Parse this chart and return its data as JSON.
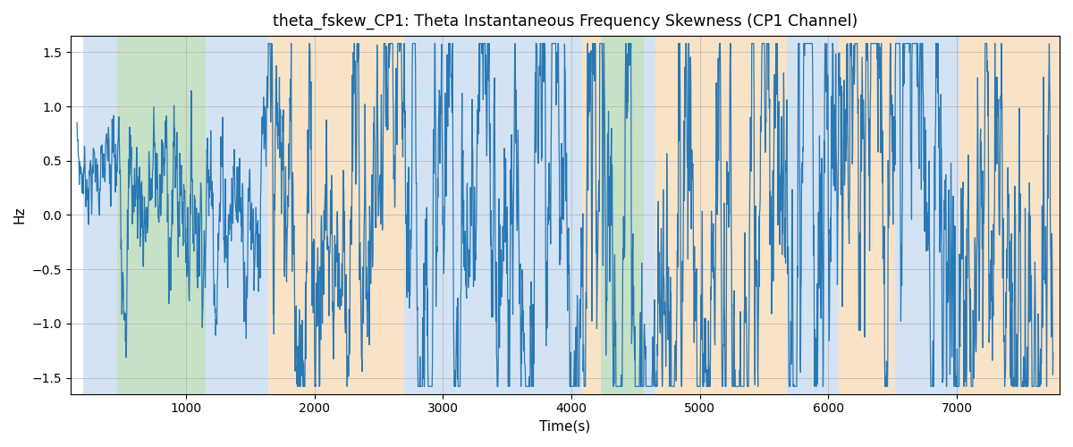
{
  "title": "theta_fskew_CP1: Theta Instantaneous Frequency Skewness (CP1 Channel)",
  "xlabel": "Time(s)",
  "ylabel": "Hz",
  "ylim": [
    -1.65,
    1.65
  ],
  "xlim": [
    100,
    7800
  ],
  "line_color": "#2878b5",
  "line_width": 0.9,
  "background_regions": [
    {
      "xmin": 200,
      "xmax": 460,
      "color": "#aac8e8",
      "alpha": 0.5
    },
    {
      "xmin": 460,
      "xmax": 1150,
      "color": "#90c490",
      "alpha": 0.5
    },
    {
      "xmin": 1150,
      "xmax": 1640,
      "color": "#aac8e8",
      "alpha": 0.5
    },
    {
      "xmin": 1640,
      "xmax": 2700,
      "color": "#f5c890",
      "alpha": 0.5
    },
    {
      "xmin": 2700,
      "xmax": 4080,
      "color": "#aac8e8",
      "alpha": 0.5
    },
    {
      "xmin": 4080,
      "xmax": 4230,
      "color": "#f5c890",
      "alpha": 0.5
    },
    {
      "xmin": 4230,
      "xmax": 4560,
      "color": "#90c490",
      "alpha": 0.5
    },
    {
      "xmin": 4560,
      "xmax": 4650,
      "color": "#aac8e8",
      "alpha": 0.5
    },
    {
      "xmin": 4650,
      "xmax": 5680,
      "color": "#f5c890",
      "alpha": 0.5
    },
    {
      "xmin": 5680,
      "xmax": 6080,
      "color": "#aac8e8",
      "alpha": 0.5
    },
    {
      "xmin": 6080,
      "xmax": 6520,
      "color": "#f5c890",
      "alpha": 0.5
    },
    {
      "xmin": 6520,
      "xmax": 7020,
      "color": "#aac8e8",
      "alpha": 0.5
    },
    {
      "xmin": 7020,
      "xmax": 7800,
      "color": "#f5c890",
      "alpha": 0.5
    }
  ],
  "xticks": [
    1000,
    2000,
    3000,
    4000,
    5000,
    6000,
    7000
  ],
  "yticks": [
    -1.5,
    -1.0,
    -0.5,
    0.0,
    0.5,
    1.0,
    1.5
  ],
  "t_start": 150,
  "t_end": 7750,
  "n_points": 3000
}
